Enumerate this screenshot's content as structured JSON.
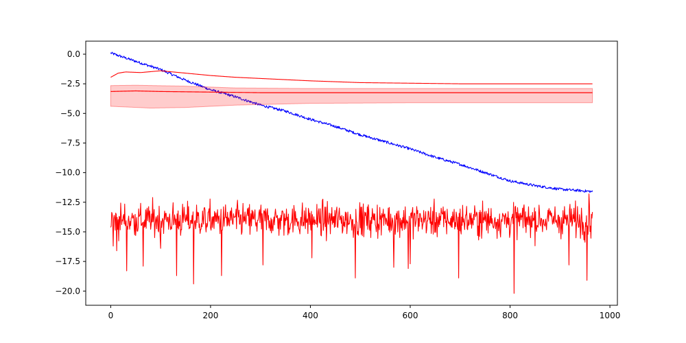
{
  "chart_data": {
    "type": "line",
    "title": "",
    "xlabel": "",
    "ylabel": "",
    "xlim": [
      -50,
      1015
    ],
    "ylim": [
      -21.2,
      1.1
    ],
    "grid": false,
    "legend": "none",
    "xticks": [
      0,
      200,
      400,
      600,
      800,
      1000
    ],
    "xtick_labels": [
      "0",
      "200",
      "400",
      "600",
      "800",
      "1000"
    ],
    "yticks": [
      0.0,
      -2.5,
      -5.0,
      -7.5,
      -10.0,
      -12.5,
      -15.0,
      -17.5,
      -20.0
    ],
    "ytick_labels": [
      "0.0",
      "−2.5",
      "−5.0",
      "−7.5",
      "−10.0",
      "−12.5",
      "−15.0",
      "−17.5",
      "−20.0"
    ],
    "x_range": [
      0,
      965
    ],
    "series": [
      {
        "color": "#0000ff",
        "kind": "noisy-trend",
        "points": [
          [
            0,
            0.1
          ],
          [
            50,
            -0.6
          ],
          [
            100,
            -1.3
          ],
          [
            150,
            -2.2
          ],
          [
            200,
            -3.0
          ],
          [
            250,
            -3.6
          ],
          [
            300,
            -4.3
          ],
          [
            350,
            -4.8
          ],
          [
            400,
            -5.5
          ],
          [
            450,
            -6.1
          ],
          [
            500,
            -6.8
          ],
          [
            550,
            -7.4
          ],
          [
            600,
            -8.0
          ],
          [
            650,
            -8.7
          ],
          [
            700,
            -9.3
          ],
          [
            750,
            -10.0
          ],
          [
            800,
            -10.7
          ],
          [
            850,
            -11.1
          ],
          [
            900,
            -11.4
          ],
          [
            965,
            -11.6
          ]
        ]
      },
      {
        "color": "#ff0000",
        "kind": "smooth",
        "points": [
          [
            0,
            -1.95
          ],
          [
            15,
            -1.6
          ],
          [
            30,
            -1.5
          ],
          [
            60,
            -1.55
          ],
          [
            100,
            -1.4
          ],
          [
            150,
            -1.6
          ],
          [
            200,
            -1.8
          ],
          [
            250,
            -1.95
          ],
          [
            300,
            -2.05
          ],
          [
            400,
            -2.25
          ],
          [
            500,
            -2.4
          ],
          [
            600,
            -2.45
          ],
          [
            700,
            -2.5
          ],
          [
            800,
            -2.5
          ],
          [
            965,
            -2.5
          ]
        ]
      },
      {
        "color": "#ff0000",
        "kind": "mean-with-band",
        "band_color": "#ff0000",
        "band_opacity": 0.2,
        "mean": [
          [
            0,
            -3.15
          ],
          [
            50,
            -3.1
          ],
          [
            100,
            -3.15
          ],
          [
            200,
            -3.2
          ],
          [
            300,
            -3.25
          ],
          [
            500,
            -3.25
          ],
          [
            965,
            -3.25
          ]
        ],
        "upper": [
          [
            0,
            -2.65
          ],
          [
            50,
            -2.62
          ],
          [
            150,
            -2.7
          ],
          [
            250,
            -2.85
          ],
          [
            400,
            -2.9
          ],
          [
            600,
            -2.9
          ],
          [
            965,
            -2.9
          ]
        ],
        "lower": [
          [
            0,
            -4.4
          ],
          [
            80,
            -4.55
          ],
          [
            150,
            -4.5
          ],
          [
            250,
            -4.3
          ],
          [
            400,
            -4.15
          ],
          [
            600,
            -4.1
          ],
          [
            965,
            -4.1
          ]
        ]
      },
      {
        "color": "#ff0000",
        "kind": "noise",
        "mean": -14.0,
        "spread": 1.3,
        "min": -20.2,
        "max": -11.7,
        "spikes": [
          [
            5,
            -16.2
          ],
          [
            12,
            -16.6
          ],
          [
            32,
            -18.3
          ],
          [
            65,
            -17.9
          ],
          [
            100,
            -16.4
          ],
          [
            132,
            -18.7
          ],
          [
            166,
            -19.4
          ],
          [
            222,
            -18.7
          ],
          [
            305,
            -17.8
          ],
          [
            403,
            -17.2
          ],
          [
            490,
            -18.9
          ],
          [
            567,
            -18.0
          ],
          [
            596,
            -18.1
          ],
          [
            600,
            -17.7
          ],
          [
            697,
            -18.9
          ],
          [
            808,
            -20.2
          ],
          [
            918,
            -17.8
          ],
          [
            954,
            -19.1
          ],
          [
            958,
            -11.8
          ]
        ]
      }
    ]
  }
}
